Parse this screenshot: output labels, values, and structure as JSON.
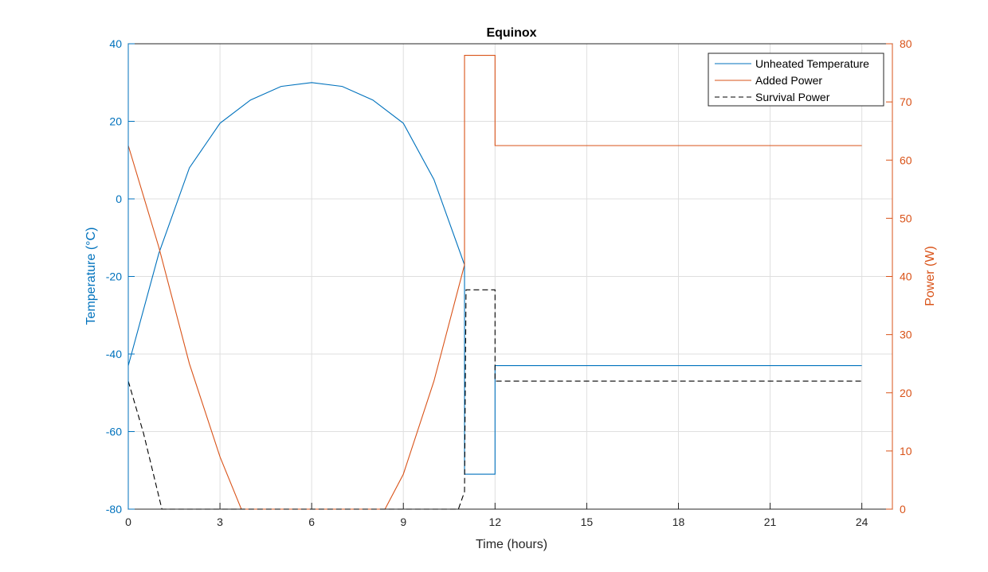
{
  "chart_data": {
    "type": "line",
    "title": "Equinox",
    "xlabel": "Time (hours)",
    "ylabel_left": "Temperature (°C)",
    "ylabel_right": "Power (W)",
    "xlim": [
      0,
      25
    ],
    "ylim_left": [
      -80,
      40
    ],
    "ylim_right": [
      0,
      80
    ],
    "xticks": [
      "0",
      "3",
      "6",
      "9",
      "12",
      "15",
      "18",
      "21",
      "24"
    ],
    "yticks_left": [
      "-80",
      "-60",
      "-40",
      "-20",
      "0",
      "20",
      "40"
    ],
    "yticks_right": [
      "0",
      "10",
      "20",
      "30",
      "40",
      "50",
      "60",
      "70",
      "80"
    ],
    "grid": true,
    "legend_position": "top-right",
    "colors": {
      "temperature": "#0072bd",
      "power": "#d95319",
      "survival": "#000000"
    },
    "series": [
      {
        "name": "Unheated Temperature",
        "axis": "left",
        "style": "solid",
        "points": [
          [
            0,
            -43
          ],
          [
            1,
            -14
          ],
          [
            2,
            8
          ],
          [
            3,
            19.5
          ],
          [
            4,
            25.5
          ],
          [
            5,
            29
          ],
          [
            6,
            30
          ],
          [
            7,
            29
          ],
          [
            8,
            25.5
          ],
          [
            9,
            19.5
          ],
          [
            10,
            5
          ],
          [
            11,
            -17
          ],
          [
            11,
            -71
          ],
          [
            12,
            -71
          ],
          [
            12,
            -43
          ],
          [
            24,
            -43
          ]
        ]
      },
      {
        "name": "Added Power",
        "axis": "right",
        "style": "solid",
        "points": [
          [
            0,
            62.5
          ],
          [
            1,
            45
          ],
          [
            2,
            25
          ],
          [
            3,
            9
          ],
          [
            3.7,
            0
          ],
          [
            8.4,
            0
          ],
          [
            9,
            6
          ],
          [
            10,
            22
          ],
          [
            11,
            42
          ],
          [
            11,
            78
          ],
          [
            12,
            78
          ],
          [
            12,
            62.5
          ],
          [
            24,
            62.5
          ]
        ]
      },
      {
        "name": "Survival Power",
        "axis": "right",
        "style": "dashed",
        "points": [
          [
            0,
            22
          ],
          [
            0.5,
            13
          ],
          [
            1.1,
            0
          ],
          [
            10.8,
            0
          ],
          [
            11,
            3
          ],
          [
            11.05,
            37.7
          ],
          [
            12,
            37.7
          ],
          [
            12,
            22
          ],
          [
            24,
            22
          ]
        ]
      }
    ]
  }
}
